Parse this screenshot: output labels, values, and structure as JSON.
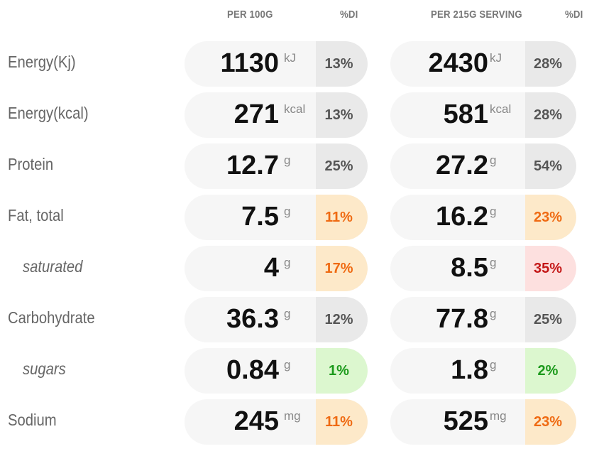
{
  "headers": {
    "col1": "PER 100G",
    "col1_di": "%DI",
    "col2": "PER 215G SERVING",
    "col2_di": "%DI"
  },
  "rows": [
    {
      "label": "Energy(Kj)",
      "sub": false,
      "v1": "1130",
      "u1": "kJ",
      "d1": "13%",
      "c1": "grey",
      "v2": "2430",
      "u2": "kJ",
      "d2": "28%",
      "c2": "grey"
    },
    {
      "label": "Energy(kcal)",
      "sub": false,
      "v1": "271",
      "u1": "kcal",
      "d1": "13%",
      "c1": "grey",
      "v2": "581",
      "u2": "kcal",
      "d2": "28%",
      "c2": "grey"
    },
    {
      "label": "Protein",
      "sub": false,
      "v1": "12.7",
      "u1": "g",
      "d1": "25%",
      "c1": "grey",
      "v2": "27.2",
      "u2": "g",
      "d2": "54%",
      "c2": "grey"
    },
    {
      "label": "Fat, total",
      "sub": false,
      "v1": "7.5",
      "u1": "g",
      "d1": "11%",
      "c1": "orange",
      "v2": "16.2",
      "u2": "g",
      "d2": "23%",
      "c2": "orange"
    },
    {
      "label": "saturated",
      "sub": true,
      "v1": "4",
      "u1": "g",
      "d1": "17%",
      "c1": "orange",
      "v2": "8.5",
      "u2": "g",
      "d2": "35%",
      "c2": "red"
    },
    {
      "label": "Carbohydrate",
      "sub": false,
      "v1": "36.3",
      "u1": "g",
      "d1": "12%",
      "c1": "grey",
      "v2": "77.8",
      "u2": "g",
      "d2": "25%",
      "c2": "grey"
    },
    {
      "label": "sugars",
      "sub": true,
      "v1": "0.84",
      "u1": "g",
      "d1": "1%",
      "c1": "green",
      "v2": "1.8",
      "u2": "g",
      "d2": "2%",
      "c2": "green"
    },
    {
      "label": "Sodium",
      "sub": false,
      "v1": "245",
      "u1": "mg",
      "d1": "11%",
      "c1": "orange",
      "v2": "525",
      "u2": "mg",
      "d2": "23%",
      "c2": "orange"
    }
  ]
}
